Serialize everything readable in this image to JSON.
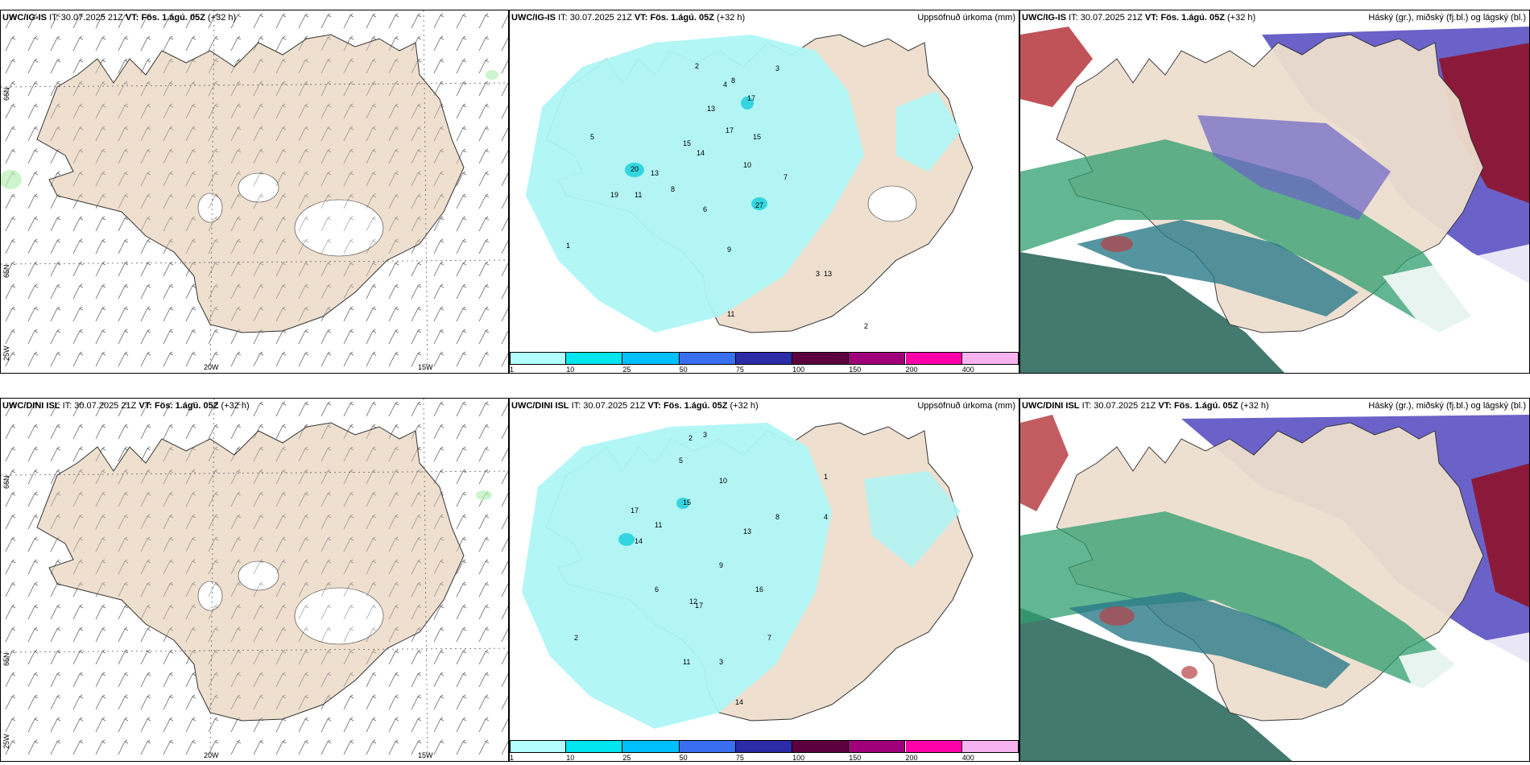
{
  "panels_top": {
    "wind": {
      "model": "UWC/IG-IS",
      "it_label": "IT:",
      "it_value": "30.07.2025 21Z",
      "vt_label": "VT:",
      "vt_value": "Fös. 1.ágú. 05Z",
      "lead": "(+32 h)"
    },
    "precip": {
      "model": "UWC/IG-IS",
      "it_label": "IT:",
      "it_value": "30.07.2025 21Z",
      "vt_label": "VT:",
      "vt_value": "Fös. 1.ágú. 05Z",
      "lead": "(+32 h)",
      "right_title": "Uppsöfnuð úrkoma (mm)"
    },
    "cloud": {
      "model": "UWC/IG-IS",
      "it_label": "IT:",
      "it_value": "30.07.2025 21Z",
      "vt_label": "VT:",
      "vt_value": "Fös. 1.ágú. 05Z",
      "lead": "(+32 h)",
      "right_title": "Háský (gr.), miðský (fj.bl.) og lágský (bl.)"
    }
  },
  "panels_bottom": {
    "wind": {
      "model": "UWC/DINI ISL",
      "it_label": "IT:",
      "it_value": "30.07.2025 21Z",
      "vt_label": "VT:",
      "vt_value": "Fös. 1.ágú. 05Z",
      "lead": "(+32 h)"
    },
    "precip": {
      "model": "UWC/DINI ISL",
      "it_label": "IT:",
      "it_value": "30.07.2025 21Z",
      "vt_label": "VT:",
      "vt_value": "Fös. 1.ágú. 05Z",
      "lead": "(+32 h)",
      "right_title": "Uppsöfnuð úrkoma (mm)"
    },
    "cloud": {
      "model": "UWC/DINI ISL",
      "it_label": "IT:",
      "it_value": "30.07.2025 21Z",
      "vt_label": "VT:",
      "vt_value": "Fös. 1.ágú. 05Z",
      "lead": "(+32 h)",
      "right_title": "Háský (gr.), miðský (fj.bl.) og lágský (bl.)"
    }
  },
  "axis_labels": {
    "lat_66": "66N",
    "lat_65": "65N",
    "lon_25": "25W",
    "lon_20": "20W",
    "lon_15": "15W"
  },
  "colorbar": {
    "ticks": [
      "1",
      "10",
      "25",
      "50",
      "75",
      "100",
      "150",
      "200",
      "400"
    ],
    "colors": [
      "#b3ffff",
      "#00e5ee",
      "#00bfff",
      "#3a6ef0",
      "#2b2ba8",
      "#5c0040",
      "#a0007a",
      "#ff00aa",
      "#f7b3f0"
    ]
  },
  "colors": {
    "land": "#eedfcf",
    "sea": "#ffffff",
    "precip_light": "#aef6f6",
    "high_cloud": "#2e9e6e",
    "mid_cloud": "#6a62c8",
    "low_cloud": "#8b1a3a"
  },
  "precip_values_top": [
    "2",
    "4",
    "8",
    "3",
    "17",
    "15",
    "17",
    "15",
    "13",
    "20",
    "19",
    "11",
    "8",
    "6",
    "9",
    "27",
    "10",
    "14",
    "13",
    "5",
    "7",
    "1",
    "3",
    "2",
    "11",
    "13"
  ],
  "precip_values_bottom": [
    "2",
    "3",
    "5",
    "17",
    "15",
    "11",
    "10",
    "14",
    "12",
    "16",
    "13",
    "9",
    "8",
    "4",
    "1",
    "6",
    "14",
    "17",
    "3",
    "2",
    "7",
    "11"
  ]
}
